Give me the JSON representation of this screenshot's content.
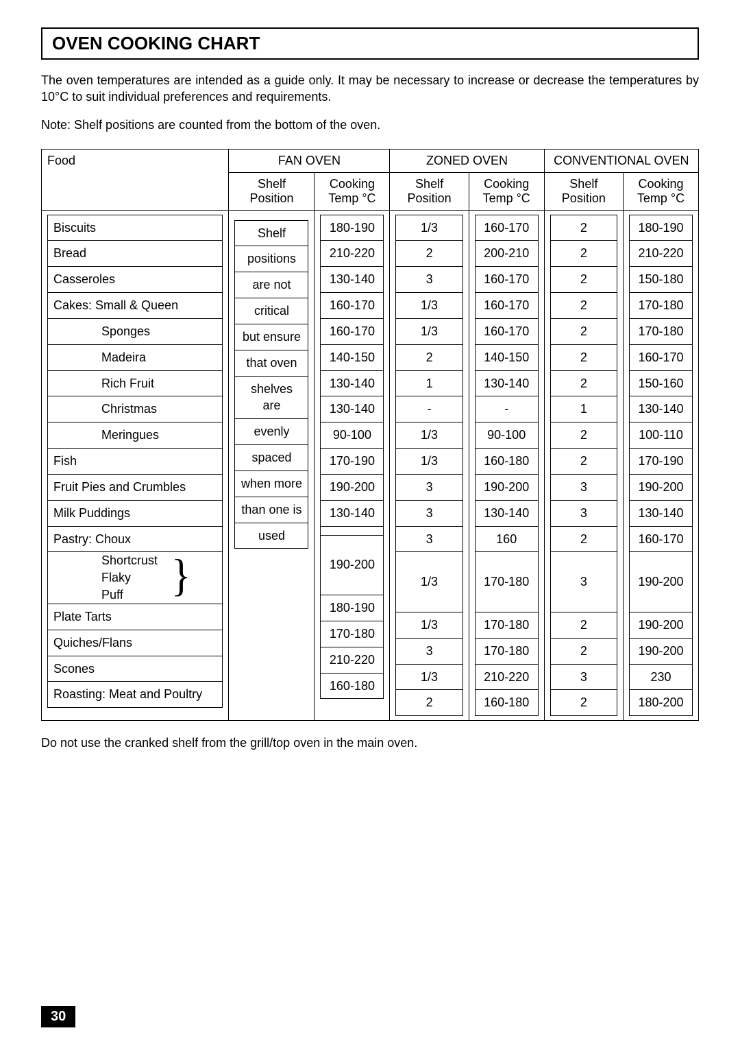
{
  "title": "OVEN COOKING CHART",
  "intro": "The oven temperatures are intended as a guide only. It may be necessary to increase or decrease the temperatures by 10°C to suit individual preferences and requirements.",
  "note": "Note:  Shelf positions are counted from the bottom of the oven.",
  "footer_note": "Do not use the cranked shelf from the grill/top oven in the main oven.",
  "page_number": "30",
  "headers": {
    "fan": "FAN  OVEN",
    "zoned": "ZONED  OVEN",
    "conv": "CONVENTIONAL OVEN",
    "food": "Food",
    "shelf": "Shelf Position",
    "temp": "Cooking Temp °C"
  },
  "fan_shelf_text": [
    "Shelf",
    "positions",
    "are not",
    "critical",
    "but ensure",
    "that oven",
    "shelves  are",
    "evenly",
    "spaced",
    "when more",
    "than one is",
    "used"
  ],
  "foods": [
    {
      "label": "Biscuits",
      "indent": 0
    },
    {
      "label": "Bread",
      "indent": 0
    },
    {
      "label": "Casseroles",
      "indent": 0
    },
    {
      "label": "Cakes:    Small & Queen",
      "indent": 0
    },
    {
      "label": "Sponges",
      "indent": 1
    },
    {
      "label": "Madeira",
      "indent": 1
    },
    {
      "label": "Rich Fruit",
      "indent": 1
    },
    {
      "label": "Christmas",
      "indent": 1
    },
    {
      "label": "Meringues",
      "indent": 1
    },
    {
      "label": "Fish",
      "indent": 0
    },
    {
      "label": "Fruit Pies and Crumbles",
      "indent": 0
    },
    {
      "label": "Milk Puddings",
      "indent": 0
    },
    {
      "label": "Pastry:    Choux",
      "indent": 0
    },
    {
      "label": "__PASTRY_BRACE__",
      "indent": 1
    },
    {
      "label": "Plate Tarts",
      "indent": 0
    },
    {
      "label": "Quiches/Flans",
      "indent": 0
    },
    {
      "label": "Scones",
      "indent": 0
    },
    {
      "label": "Roasting: Meat and Poultry",
      "indent": 0
    }
  ],
  "pastry_brace_items": [
    "Shortcrust",
    "Flaky",
    "Puff"
  ],
  "fan_temp": [
    "180-190",
    "210-220",
    "130-140",
    "160-170",
    "160-170",
    "140-150",
    "130-140",
    "130-140",
    "90-100",
    "170-190",
    "190-200",
    "130-140",
    "",
    "190-200",
    "180-190",
    "170-180",
    "210-220",
    "160-180"
  ],
  "zoned_shelf": [
    "1/3",
    "2",
    "3",
    "1/3",
    "1/3",
    "2",
    "1",
    "-",
    "1/3",
    "1/3",
    "3",
    "3",
    "3",
    "1/3",
    "1/3",
    "3",
    "1/3",
    "2"
  ],
  "zoned_temp": [
    "160-170",
    "200-210",
    "160-170",
    "160-170",
    "160-170",
    "140-150",
    "130-140",
    "-",
    "90-100",
    "160-180",
    "190-200",
    "130-140",
    "160",
    "170-180",
    "170-180",
    "170-180",
    "210-220",
    "160-180"
  ],
  "conv_shelf": [
    "2",
    "2",
    "2",
    "2",
    "2",
    "2",
    "2",
    "1",
    "2",
    "2",
    "3",
    "3",
    "2",
    "3",
    "2",
    "2",
    "3",
    "2"
  ],
  "conv_temp": [
    "180-190",
    "210-220",
    "150-180",
    "170-180",
    "170-180",
    "160-170",
    "150-160",
    "130-140",
    "100-110",
    "170-190",
    "190-200",
    "130-140",
    "160-170",
    "190-200",
    "190-200",
    "190-200",
    "230",
    "180-200"
  ],
  "brace_rows_span": 3,
  "colors": {
    "text": "#000000",
    "bg": "#ffffff",
    "pagebg": "#000000",
    "pagefg": "#ffffff"
  }
}
